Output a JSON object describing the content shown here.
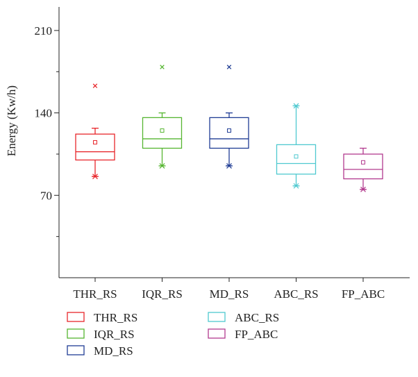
{
  "chart_data": {
    "type": "box",
    "title": "",
    "xlabel": "",
    "ylabel": "Energy (Kw/h)",
    "ylim": [
      0,
      230
    ],
    "yticks": [
      70,
      140,
      210
    ],
    "grid": false,
    "legend_position": "bottom",
    "categories": [
      "THR_RS",
      "IQR_RS",
      "MD_RS",
      "ABC_RS",
      "FP_ABC"
    ],
    "series": [
      {
        "name": "THR_RS",
        "color": "#e8262b",
        "min": 86,
        "q1": 100,
        "median": 107,
        "q3": 122,
        "max": 127,
        "mean": 115,
        "outliers": [
          163
        ]
      },
      {
        "name": "IQR_RS",
        "color": "#55b530",
        "min": 95,
        "q1": 110,
        "median": 118,
        "q3": 136,
        "max": 140,
        "mean": 125,
        "outliers": [
          179
        ]
      },
      {
        "name": "MD_RS",
        "color": "#1f3c94",
        "min": 95,
        "q1": 110,
        "median": 118,
        "q3": 136,
        "max": 140,
        "mean": 125,
        "outliers": [
          179
        ]
      },
      {
        "name": "ABC_RS",
        "color": "#4fc9d0",
        "min": 78,
        "q1": 88,
        "median": 97,
        "q3": 113,
        "max": 146,
        "mean": 103,
        "outliers": []
      },
      {
        "name": "FP_ABC",
        "color": "#b23a8e",
        "min": 75,
        "q1": 84,
        "median": 92,
        "q3": 105,
        "max": 110,
        "mean": 98,
        "outliers": []
      }
    ]
  }
}
